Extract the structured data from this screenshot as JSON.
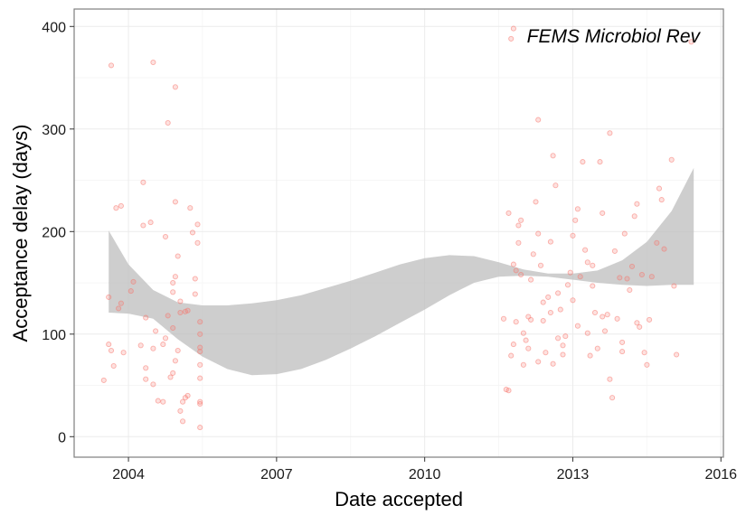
{
  "chart_data": {
    "type": "scatter",
    "title": "",
    "xlabel": "Date accepted",
    "ylabel": "Acceptance delay (days)",
    "annotation": "FEMS Microbiol Rev",
    "xlim": [
      2002.9,
      2016.05
    ],
    "ylim": [
      -20,
      417
    ],
    "x_ticks": [
      2004,
      2007,
      2010,
      2013,
      2016
    ],
    "y_ticks": [
      0,
      100,
      200,
      300,
      400
    ],
    "grid": true,
    "legend": "none",
    "colors": {
      "points": "#f8766d",
      "ribbon": "#bdbdbd",
      "grid_major": "#ebebeb",
      "grid_minor": "#f5f5f5",
      "panel_border": "#7f7f7f"
    },
    "smooth_band": {
      "x": [
        2003.6,
        2004.0,
        2004.5,
        2005.0,
        2005.5,
        2006.0,
        2006.5,
        2007.0,
        2007.5,
        2008.0,
        2008.5,
        2009.0,
        2009.5,
        2010.0,
        2010.5,
        2011.0,
        2011.5,
        2012.0,
        2012.5,
        2013.0,
        2013.5,
        2014.0,
        2014.5,
        2015.0,
        2015.45
      ],
      "lower": [
        121,
        120,
        115,
        95,
        78,
        66,
        60,
        61,
        66,
        75,
        86,
        98,
        111,
        124,
        138,
        150,
        156,
        157,
        156,
        153,
        150,
        148,
        147,
        148,
        148
      ],
      "upper": [
        201,
        168,
        143,
        131,
        128,
        128,
        130,
        133,
        138,
        145,
        152,
        160,
        168,
        174,
        177,
        176,
        170,
        163,
        159,
        159,
        162,
        172,
        190,
        220,
        262
      ]
    },
    "points": [
      [
        2003.5,
        55
      ],
      [
        2003.6,
        90
      ],
      [
        2003.65,
        84
      ],
      [
        2003.7,
        69
      ],
      [
        2003.6,
        136
      ],
      [
        2003.75,
        223
      ],
      [
        2003.8,
        125
      ],
      [
        2003.85,
        225
      ],
      [
        2003.85,
        130
      ],
      [
        2003.9,
        82
      ],
      [
        2003.65,
        362
      ],
      [
        2004.05,
        142
      ],
      [
        2004.1,
        151
      ],
      [
        2004.25,
        89
      ],
      [
        2004.3,
        248
      ],
      [
        2004.35,
        67
      ],
      [
        2004.35,
        56
      ],
      [
        2004.3,
        206
      ],
      [
        2004.35,
        116
      ],
      [
        2004.5,
        51
      ],
      [
        2004.5,
        365
      ],
      [
        2004.45,
        209
      ],
      [
        2004.55,
        103
      ],
      [
        2004.5,
        86
      ],
      [
        2004.75,
        195
      ],
      [
        2004.8,
        118
      ],
      [
        2004.8,
        306
      ],
      [
        2004.85,
        58
      ],
      [
        2004.95,
        341
      ],
      [
        2004.9,
        141
      ],
      [
        2004.9,
        150
      ],
      [
        2004.95,
        156
      ],
      [
        2004.95,
        229
      ],
      [
        2005.0,
        176
      ],
      [
        2005.05,
        132
      ],
      [
        2005.05,
        121
      ],
      [
        2005.15,
        122
      ],
      [
        2005.2,
        123
      ],
      [
        2005.25,
        223
      ],
      [
        2005.3,
        199
      ],
      [
        2005.35,
        139
      ],
      [
        2005.35,
        154
      ],
      [
        2005.4,
        207
      ],
      [
        2005.4,
        189
      ],
      [
        2005.45,
        112
      ],
      [
        2005.45,
        100
      ],
      [
        2005.45,
        87
      ],
      [
        2005.45,
        83
      ],
      [
        2005.45,
        70
      ],
      [
        2005.45,
        57
      ],
      [
        2005.45,
        34
      ],
      [
        2005.45,
        9
      ],
      [
        2005.45,
        32
      ],
      [
        2004.6,
        35
      ],
      [
        2004.7,
        34
      ],
      [
        2004.75,
        96
      ],
      [
        2004.9,
        62
      ],
      [
        2004.95,
        74
      ],
      [
        2005.1,
        15
      ],
      [
        2005.1,
        34
      ],
      [
        2005.15,
        38
      ],
      [
        2005.2,
        40
      ],
      [
        2004.9,
        106
      ],
      [
        2005.0,
        84
      ],
      [
        2005.05,
        25
      ],
      [
        2004.7,
        90
      ],
      [
        2011.6,
        115
      ],
      [
        2011.65,
        46
      ],
      [
        2011.7,
        45
      ],
      [
        2011.7,
        218
      ],
      [
        2011.75,
        79
      ],
      [
        2011.8,
        90
      ],
      [
        2011.85,
        112
      ],
      [
        2011.85,
        162
      ],
      [
        2011.9,
        206
      ],
      [
        2011.95,
        211
      ],
      [
        2011.9,
        189
      ],
      [
        2011.8,
        168
      ],
      [
        2012.0,
        101
      ],
      [
        2012.05,
        94
      ],
      [
        2012.1,
        86
      ],
      [
        2012.1,
        117
      ],
      [
        2012.15,
        153
      ],
      [
        2012.2,
        178
      ],
      [
        2012.25,
        229
      ],
      [
        2012.3,
        309
      ],
      [
        2012.3,
        198
      ],
      [
        2012.35,
        167
      ],
      [
        2012.4,
        131
      ],
      [
        2012.45,
        82
      ],
      [
        2012.5,
        136
      ],
      [
        2012.55,
        121
      ],
      [
        2012.6,
        274
      ],
      [
        2012.65,
        245
      ],
      [
        2012.7,
        140
      ],
      [
        2012.7,
        96
      ],
      [
        2012.75,
        124
      ],
      [
        2012.8,
        80
      ],
      [
        2012.85,
        98
      ],
      [
        2012.9,
        148
      ],
      [
        2012.95,
        160
      ],
      [
        2013.0,
        196
      ],
      [
        2013.05,
        211
      ],
      [
        2013.1,
        222
      ],
      [
        2013.15,
        156
      ],
      [
        2013.2,
        268
      ],
      [
        2013.25,
        182
      ],
      [
        2013.3,
        101
      ],
      [
        2013.35,
        79
      ],
      [
        2013.4,
        167
      ],
      [
        2013.45,
        121
      ],
      [
        2013.5,
        86
      ],
      [
        2013.55,
        268
      ],
      [
        2013.6,
        218
      ],
      [
        2013.65,
        103
      ],
      [
        2013.7,
        119
      ],
      [
        2013.75,
        296
      ],
      [
        2013.75,
        56
      ],
      [
        2013.8,
        38
      ],
      [
        2013.85,
        181
      ],
      [
        2013.9,
        115
      ],
      [
        2013.95,
        155
      ],
      [
        2014.0,
        92
      ],
      [
        2014.05,
        198
      ],
      [
        2014.1,
        154
      ],
      [
        2014.15,
        143
      ],
      [
        2014.2,
        166
      ],
      [
        2014.25,
        215
      ],
      [
        2014.3,
        227
      ],
      [
        2014.35,
        107
      ],
      [
        2014.4,
        158
      ],
      [
        2014.45,
        82
      ],
      [
        2014.5,
        70
      ],
      [
        2014.55,
        114
      ],
      [
        2014.6,
        156
      ],
      [
        2014.7,
        189
      ],
      [
        2014.75,
        242
      ],
      [
        2014.8,
        231
      ],
      [
        2014.85,
        183
      ],
      [
        2015.0,
        270
      ],
      [
        2015.05,
        147
      ],
      [
        2015.1,
        80
      ],
      [
        2012.3,
        73
      ],
      [
        2012.6,
        71
      ],
      [
        2013.0,
        133
      ],
      [
        2013.3,
        170
      ],
      [
        2012.0,
        70
      ],
      [
        2012.4,
        113
      ],
      [
        2012.8,
        89
      ],
      [
        2013.1,
        108
      ],
      [
        2013.6,
        117
      ],
      [
        2014.0,
        83
      ],
      [
        2014.3,
        111
      ],
      [
        2011.95,
        158
      ],
      [
        2012.15,
        114
      ],
      [
        2012.55,
        190
      ],
      [
        2013.4,
        147
      ],
      [
        2011.8,
        398
      ],
      [
        2011.75,
        388
      ],
      [
        2015.4,
        385
      ]
    ]
  }
}
